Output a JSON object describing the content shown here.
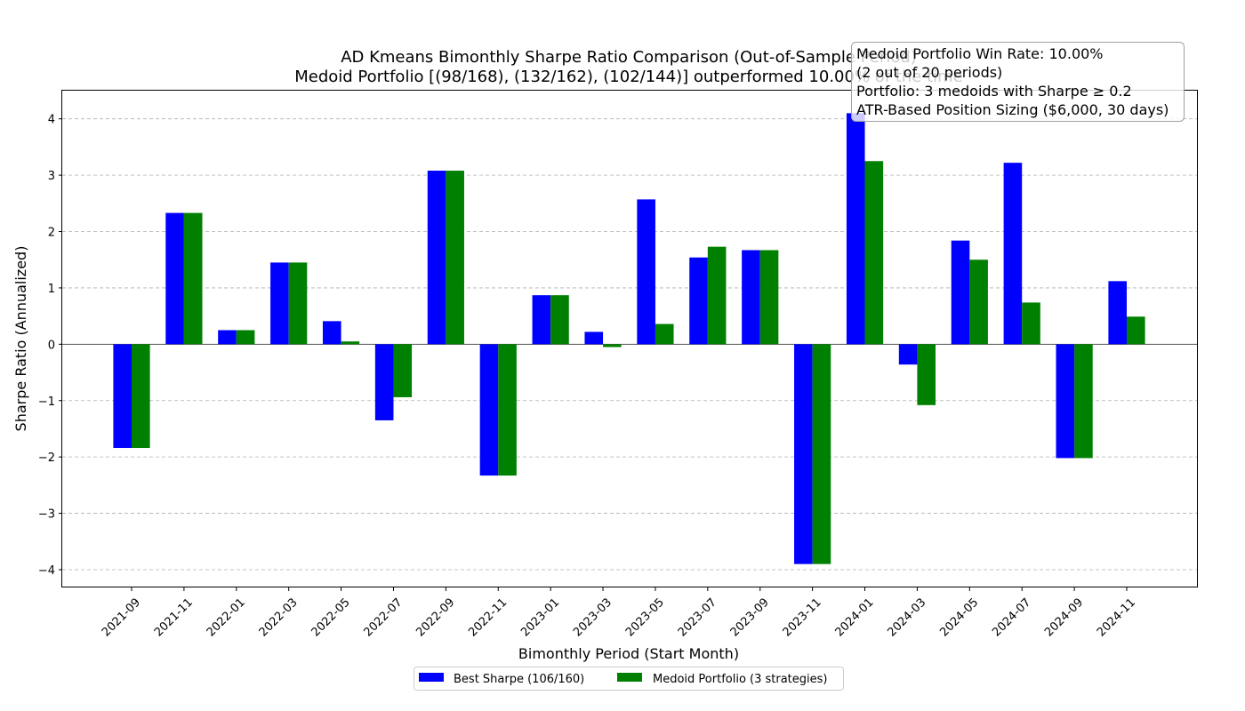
{
  "chart_data": {
    "type": "bar",
    "title_line1": "AD Kmeans Bimonthly Sharpe Ratio Comparison (Out-of-Sample Period)",
    "title_line2": "Medoid Portfolio [(98/168), (132/162), (102/144)] outperformed 10.00% of the time",
    "xlabel": "Bimonthly Period (Start Month)",
    "ylabel": "Sharpe Ratio (Annualized)",
    "ylim": [
      -4.3,
      4.5
    ],
    "yticks": [
      -4,
      -3,
      -2,
      -1,
      0,
      1,
      2,
      3,
      4
    ],
    "ytick_labels": [
      "−4",
      "−3",
      "−2",
      "−1",
      "0",
      "1",
      "2",
      "3",
      "4"
    ],
    "grid": true,
    "legend_position": "bottom-center",
    "categories": [
      "2021-09",
      "2021-11",
      "2022-01",
      "2022-03",
      "2022-05",
      "2022-07",
      "2022-09",
      "2022-11",
      "2023-01",
      "2023-03",
      "2023-05",
      "2023-07",
      "2023-09",
      "2023-11",
      "2024-01",
      "2024-03",
      "2024-05",
      "2024-07",
      "2024-09",
      "2024-11"
    ],
    "series": [
      {
        "name": "Best Sharpe (106/160)",
        "color": "#0000ff",
        "values": [
          -1.84,
          2.33,
          0.25,
          1.45,
          0.41,
          -1.35,
          3.08,
          -2.33,
          0.87,
          0.22,
          2.57,
          1.54,
          1.67,
          -3.9,
          4.1,
          -0.36,
          1.84,
          3.22,
          -2.02,
          1.12
        ]
      },
      {
        "name": "Medoid Portfolio (3 strategies)",
        "color": "#008000",
        "values": [
          -1.84,
          2.33,
          0.25,
          1.45,
          0.05,
          -0.94,
          3.08,
          -2.33,
          0.87,
          -0.05,
          0.36,
          1.73,
          1.67,
          -3.9,
          3.25,
          -1.08,
          1.5,
          0.74,
          -2.02,
          0.49
        ]
      }
    ],
    "info_box": [
      "Medoid Portfolio Win Rate: 10.00%",
      "(2 out of 20 periods)",
      "Portfolio: 3 medoids with Sharpe ≥ 0.2",
      "ATR-Based Position Sizing ($6,000, 30 days)"
    ]
  }
}
